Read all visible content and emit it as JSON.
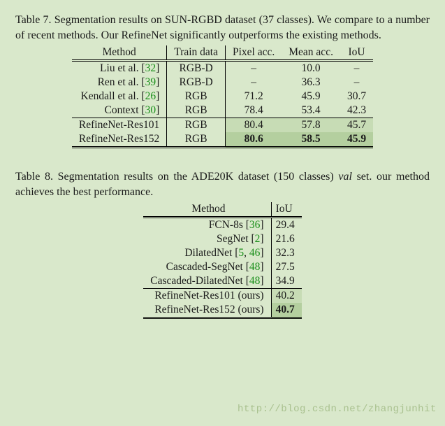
{
  "watermark": "http://blog.csdn.net/zhangjunhit",
  "table7": {
    "caption_prefix": "Table 7. Segmentation results on SUN-RGBD dataset (37 classes). We compare to a number of recent methods. Our RefineNet significantly outperforms the existing methods.",
    "headers": [
      "Method",
      "Train data",
      "Pixel acc.",
      "Mean acc.",
      "IoU"
    ],
    "rows": [
      {
        "method": "Liu et al. [",
        "cite": "32",
        "suffix": "]",
        "train": "RGB-D",
        "pix": "–",
        "mean": "10.0",
        "iou": "–",
        "hl": ""
      },
      {
        "method": "Ren et al. [",
        "cite": "39",
        "suffix": "]",
        "train": "RGB-D",
        "pix": "–",
        "mean": "36.3",
        "iou": "–",
        "hl": ""
      },
      {
        "method": "Kendall et al. [",
        "cite": "26",
        "suffix": "]",
        "train": "RGB",
        "pix": "71.2",
        "mean": "45.9",
        "iou": "30.7",
        "hl": ""
      },
      {
        "method": "Context [",
        "cite": "30",
        "suffix": "]",
        "train": "RGB",
        "pix": "78.4",
        "mean": "53.4",
        "iou": "42.3",
        "hl": ""
      }
    ],
    "ours": [
      {
        "method": "RefineNet-Res101",
        "train": "RGB",
        "pix": "80.4",
        "mean": "57.8",
        "iou": "45.7",
        "hl": "hl1",
        "bold": false
      },
      {
        "method": "RefineNet-Res152",
        "train": "RGB",
        "pix": "80.6",
        "mean": "58.5",
        "iou": "45.9",
        "hl": "hl2",
        "bold": true
      }
    ]
  },
  "table8": {
    "caption_before_italic": "Table 8. Segmentation results on the ADE20K dataset (150 classes) ",
    "caption_italic": "val",
    "caption_after_italic": " set. our method achieves the best performance.",
    "headers": [
      "Method",
      "IoU"
    ],
    "rows": [
      {
        "method": "FCN-8s [",
        "cites": [
          "36"
        ],
        "suffix": "]",
        "iou": "29.4"
      },
      {
        "method": "SegNet [",
        "cites": [
          "2"
        ],
        "suffix": "]",
        "iou": "21.6"
      },
      {
        "method": "DilatedNet [",
        "cites": [
          "5",
          "46"
        ],
        "suffix": "]",
        "iou": "32.3"
      },
      {
        "method": "Cascaded-SegNet [",
        "cites": [
          "48"
        ],
        "suffix": "]",
        "iou": "27.5"
      },
      {
        "method": "Cascaded-DilatedNet [",
        "cites": [
          "48"
        ],
        "suffix": "]",
        "iou": "34.9"
      }
    ],
    "ours": [
      {
        "method": "RefineNet-Res101 (ours)",
        "iou": "40.2",
        "hl": "hl1",
        "bold": false
      },
      {
        "method": "RefineNet-Res152 (ours)",
        "iou": "40.7",
        "hl": "hl2",
        "bold": true
      }
    ]
  }
}
